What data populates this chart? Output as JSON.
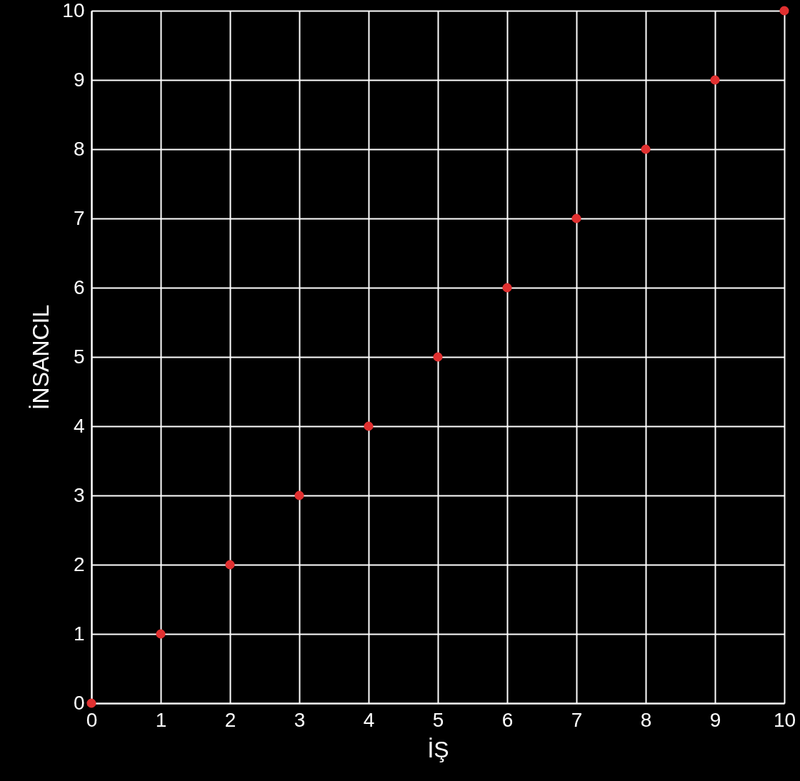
{
  "chart_data": {
    "type": "scatter",
    "xlabel": "İŞ",
    "ylabel": "İNSANCIL",
    "x": [
      0,
      1,
      2,
      3,
      4,
      5,
      6,
      7,
      8,
      9,
      10
    ],
    "series": [
      {
        "color": "#e03030",
        "values": [
          0,
          1,
          2,
          3,
          4,
          5,
          6,
          7,
          8,
          9,
          10
        ]
      }
    ],
    "xlim": [
      0,
      10
    ],
    "ylim": [
      0,
      10
    ],
    "xticks": [
      0,
      1,
      2,
      3,
      4,
      5,
      6,
      7,
      8,
      9,
      10
    ],
    "yticks": [
      0,
      1,
      2,
      3,
      4,
      5,
      6,
      7,
      8,
      9,
      10
    ],
    "grid": true,
    "marker": "circle"
  }
}
